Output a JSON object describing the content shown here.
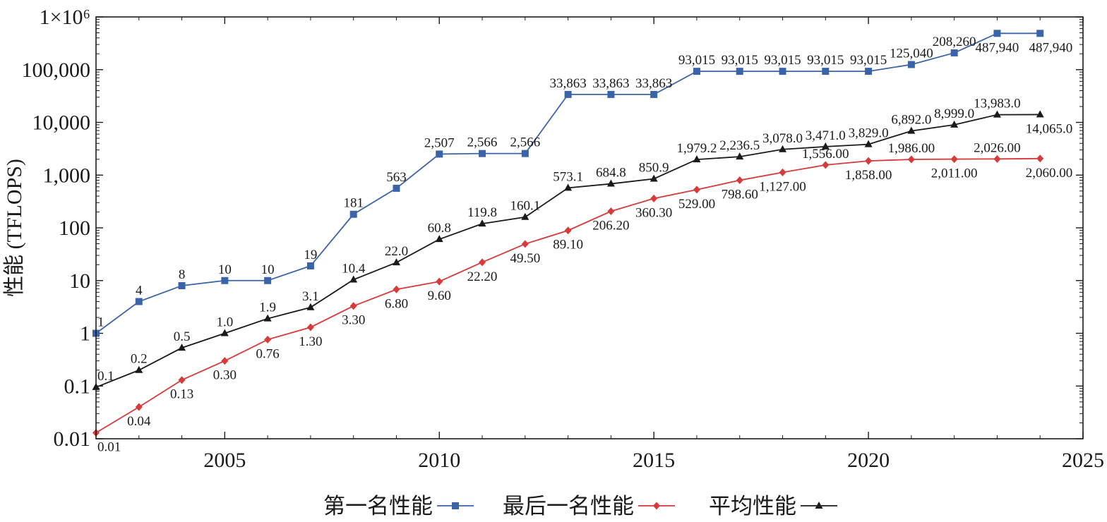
{
  "chart_data": {
    "type": "line",
    "x": [
      2002,
      2003,
      2004,
      2005,
      2006,
      2007,
      2008,
      2009,
      2010,
      2011,
      2012,
      2013,
      2014,
      2015,
      2016,
      2017,
      2018,
      2019,
      2020,
      2021,
      2022,
      2023,
      2024
    ],
    "xlim": [
      2002,
      2025
    ],
    "x_ticks": [
      "2005",
      "2010",
      "2015",
      "2020",
      "2025"
    ],
    "x_tick_values": [
      2005,
      2010,
      2015,
      2020,
      2025
    ],
    "yscale": "log",
    "ylim": [
      0.01,
      1000000
    ],
    "y_ticks": [
      "0.01",
      "0.1",
      "1",
      "10",
      "100",
      "1,000",
      "10,000",
      "100,000",
      "1×10⁶"
    ],
    "y_tick_values": [
      0.01,
      0.1,
      1,
      10,
      100,
      1000,
      10000,
      100000,
      1000000
    ],
    "ylabel": "性能 (TFLOPS)",
    "xlabel": "",
    "legend_position": "bottom",
    "series": [
      {
        "name": "第一名性能",
        "color": "#3a63a8",
        "marker": "square",
        "values": [
          1,
          4,
          8,
          10,
          10,
          19,
          181,
          563,
          2507,
          2566,
          2566,
          33863,
          33863,
          33863,
          93015,
          93015,
          93015,
          93015,
          93015,
          125040,
          208260,
          487940,
          487940
        ],
        "labels": [
          "1",
          "4",
          "8",
          "10",
          "10",
          "19",
          "181",
          "563",
          "2,507",
          "2,566",
          "2,566",
          "33,863",
          "33,863",
          "33,863",
          "93,015",
          "93,015",
          "93,015",
          "93,015",
          "93,015",
          "125,040",
          "208,260",
          "487,940",
          "487,940"
        ],
        "label_pos": [
          "a",
          "a",
          "a",
          "a",
          "a",
          "a",
          "a",
          "a",
          "a",
          "a",
          "a",
          "a",
          "a",
          "a",
          "a",
          "a",
          "a",
          "a",
          "a",
          "a",
          "a",
          "b",
          "b"
        ]
      },
      {
        "name": "最后一名性能",
        "color": "#d63a3a",
        "marker": "diamond",
        "values": [
          0.013,
          0.04,
          0.13,
          0.3,
          0.76,
          1.3,
          3.3,
          6.8,
          9.6,
          22.2,
          49.5,
          89.1,
          206.2,
          360.3,
          529,
          798.6,
          1127,
          1556,
          1858,
          1986,
          2011,
          2026,
          2060
        ],
        "labels": [
          "0.01",
          "0.04",
          "0.13",
          "0.30",
          "0.76",
          "1.30",
          "3.30",
          "6.80",
          "9.60",
          "22.20",
          "49.50",
          "89.10",
          "206.20",
          "360.30",
          "529.00",
          "798.60",
          "1,127.00",
          "1,556.00",
          "1,858.00",
          "1,986.00",
          "2,011.00",
          "2,026.00",
          "2,060.00"
        ],
        "label_pos": [
          "b",
          "b",
          "b",
          "b",
          "b",
          "b",
          "b",
          "b",
          "b",
          "b",
          "b",
          "b",
          "b",
          "b",
          "b",
          "b",
          "b",
          "a",
          "b",
          "a",
          "b",
          "a",
          "b"
        ]
      },
      {
        "name": "平均性能",
        "color": "#1a1a1a",
        "marker": "triangle",
        "values": [
          0.095,
          0.2,
          0.53,
          1.0,
          1.9,
          3.1,
          10.4,
          22.0,
          60.8,
          119.8,
          160.1,
          573.1,
          684.8,
          850.9,
          1979.2,
          2236.5,
          3078.0,
          3471.0,
          3829.0,
          6892.0,
          8999.0,
          13983.0,
          14065.0
        ],
        "labels": [
          "0.1",
          "0.2",
          "0.5",
          "1.0",
          "1.9",
          "3.1",
          "10.4",
          "22.0",
          "60.8",
          "119.8",
          "160.1",
          "573.1",
          "684.8",
          "850.9",
          "1,979.2",
          "2,236.5",
          "3,078.0",
          "3,471.0",
          "3,829.0",
          "6,892.0",
          "8,999.0",
          "13,983.0",
          "14,065.0"
        ],
        "label_pos": [
          "a",
          "a",
          "a",
          "a",
          "a",
          "a",
          "a",
          "a",
          "a",
          "a",
          "a",
          "a",
          "a",
          "a",
          "a",
          "a",
          "a",
          "a",
          "a",
          "a",
          "a",
          "a",
          "b"
        ]
      }
    ]
  }
}
